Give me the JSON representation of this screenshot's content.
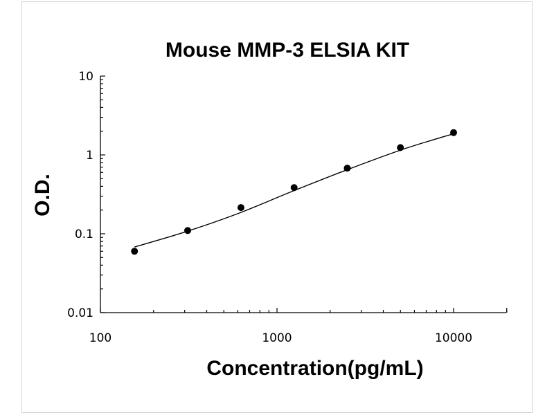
{
  "chart_data": {
    "type": "scatter",
    "title": "Mouse MMP-3 ELSIA KIT",
    "xlabel": "Concentration(pg/mL)",
    "ylabel": "O.D.",
    "x_scale": "log",
    "y_scale": "log",
    "xlim": [
      100,
      20000
    ],
    "ylim": [
      0.01,
      10
    ],
    "x_ticks": [
      {
        "value": 100,
        "label": "100"
      },
      {
        "value": 1000,
        "label": "1000"
      },
      {
        "value": 10000,
        "label": "10000"
      }
    ],
    "y_ticks": [
      {
        "value": 10,
        "label": "10"
      },
      {
        "value": 1,
        "label": "1"
      },
      {
        "value": 0.1,
        "label": "0.1"
      },
      {
        "value": 0.01,
        "label": "0.01"
      }
    ],
    "grid": false,
    "legend": "none",
    "series": [
      {
        "x": [
          156,
          312,
          625,
          1250,
          2500,
          5000,
          10000
        ],
        "y": [
          0.06,
          0.11,
          0.215,
          0.385,
          0.68,
          1.24,
          1.92
        ]
      }
    ],
    "trendline": {
      "type": "smooth fit",
      "x": [
        156,
        300,
        600,
        1200,
        2500,
        5000,
        8000,
        10000
      ],
      "y": [
        0.068,
        0.105,
        0.18,
        0.34,
        0.65,
        1.15,
        1.6,
        1.85
      ]
    }
  }
}
